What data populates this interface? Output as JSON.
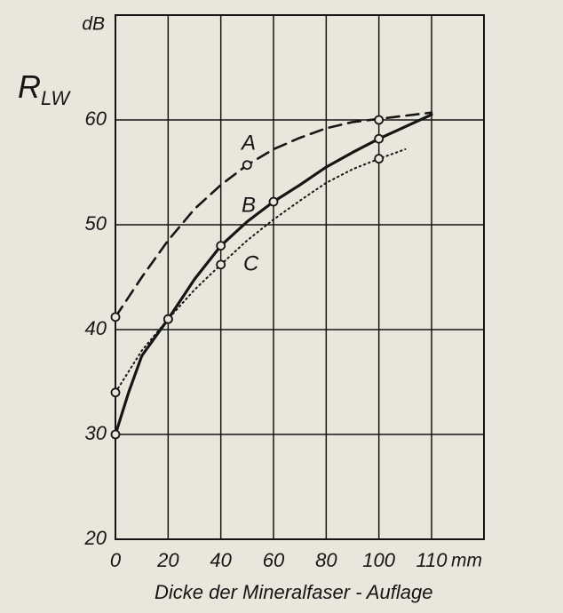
{
  "chart_data": {
    "type": "line",
    "y_label_main": "R",
    "y_label_sub": "LW",
    "y_unit": "dB",
    "x_unit": "mm",
    "x_label": "Dicke der Mineralfaser - Auflage",
    "xlim": [
      0,
      120
    ],
    "xticks": [
      0,
      20,
      40,
      60,
      80,
      100,
      110
    ],
    "ylim": [
      20,
      70
    ],
    "yticks": [
      20,
      30,
      40,
      50,
      60
    ],
    "grid": true,
    "series": [
      {
        "name": "A",
        "color": "#151515",
        "style": "dashed",
        "x": [
          0,
          10,
          20,
          30,
          40,
          50,
          60,
          70,
          80,
          90,
          100,
          110
        ],
        "values": [
          41.2,
          45,
          48.5,
          51.5,
          53.8,
          55.7,
          57.2,
          58.3,
          59.2,
          59.8,
          60.1,
          60.7
        ],
        "points": {
          "x": [
            0,
            50,
            100
          ],
          "values": [
            41.2,
            55.7,
            60
          ]
        }
      },
      {
        "name": "B",
        "color": "#151515",
        "style": "solid",
        "x": [
          0,
          5,
          10,
          20,
          30,
          40,
          50,
          60,
          70,
          80,
          90,
          100,
          110
        ],
        "values": [
          30,
          34,
          37.5,
          41,
          44.8,
          48,
          50.3,
          52.2,
          53.8,
          55.5,
          56.9,
          58.2,
          60.5
        ],
        "points": {
          "x": [
            0,
            20,
            40,
            60,
            100
          ],
          "values": [
            30,
            41,
            48,
            52.2,
            58.2
          ]
        }
      },
      {
        "name": "C",
        "color": "#151515",
        "style": "dotted",
        "x": [
          0,
          10,
          20,
          30,
          40,
          50,
          60,
          70,
          80,
          90,
          100,
          105
        ],
        "values": [
          34,
          38,
          41,
          43.8,
          46.2,
          48.5,
          50.5,
          52.3,
          54,
          55.3,
          56.3,
          57.2
        ],
        "points": {
          "x": [
            0,
            20,
            40,
            100
          ],
          "values": [
            34,
            41,
            46.2,
            56.3
          ]
        }
      }
    ]
  }
}
